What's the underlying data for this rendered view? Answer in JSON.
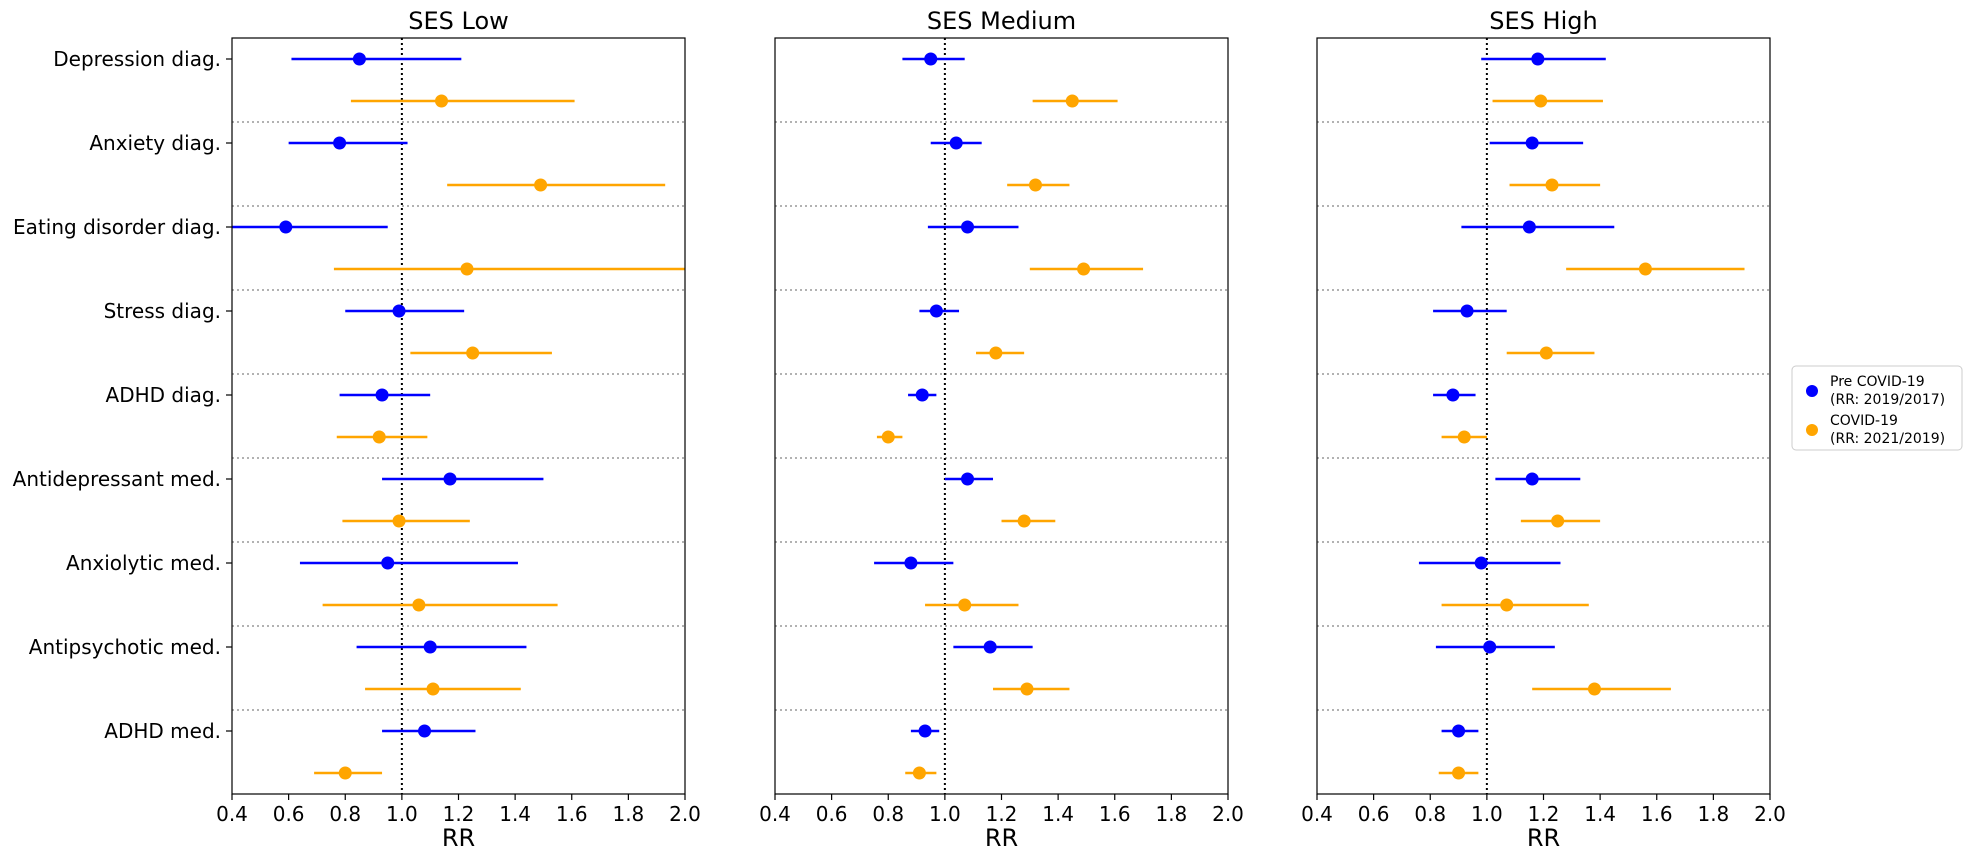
{
  "legend": {
    "entries": [
      {
        "line1": "Pre COVID-19",
        "line2": "(RR: 2019/2017)",
        "color": "#0000ff"
      },
      {
        "line1": "COVID-19",
        "line2": "(RR: 2021/2019)",
        "color": "#ffa500"
      }
    ]
  },
  "chart_data": {
    "type": "forest",
    "categories": [
      "Depression diag.",
      "Anxiety diag.",
      "Eating disorder diag.",
      "Stress diag.",
      "ADHD diag.",
      "Antidepressant med.",
      "Anxiolytic med.",
      "Antipsychotic med.",
      "ADHD med."
    ],
    "xlabel": "RR",
    "xlim": [
      0.4,
      2.0
    ],
    "xticks": [
      "0.4",
      "0.6",
      "0.8",
      "1.0",
      "1.2",
      "1.4",
      "1.6",
      "1.8",
      "2.0"
    ],
    "reference_line": 1.0,
    "series_colors": {
      "pre": "#0000ff",
      "covid": "#ffa500"
    },
    "panels": [
      {
        "title": "SES Low",
        "pre": [
          {
            "rr": 0.85,
            "lo": 0.61,
            "hi": 1.21
          },
          {
            "rr": 0.78,
            "lo": 0.6,
            "hi": 1.02
          },
          {
            "rr": 0.59,
            "lo": 0.4,
            "hi": 0.95
          },
          {
            "rr": 0.99,
            "lo": 0.8,
            "hi": 1.22
          },
          {
            "rr": 0.93,
            "lo": 0.78,
            "hi": 1.1
          },
          {
            "rr": 1.17,
            "lo": 0.93,
            "hi": 1.5
          },
          {
            "rr": 0.95,
            "lo": 0.64,
            "hi": 1.41
          },
          {
            "rr": 1.1,
            "lo": 0.84,
            "hi": 1.44
          },
          {
            "rr": 1.08,
            "lo": 0.93,
            "hi": 1.26
          }
        ],
        "covid": [
          {
            "rr": 1.14,
            "lo": 0.82,
            "hi": 1.61
          },
          {
            "rr": 1.49,
            "lo": 1.16,
            "hi": 1.93
          },
          {
            "rr": 1.23,
            "lo": 0.76,
            "hi": 2.0
          },
          {
            "rr": 1.25,
            "lo": 1.03,
            "hi": 1.53
          },
          {
            "rr": 0.92,
            "lo": 0.77,
            "hi": 1.09
          },
          {
            "rr": 0.99,
            "lo": 0.79,
            "hi": 1.24
          },
          {
            "rr": 1.06,
            "lo": 0.72,
            "hi": 1.55
          },
          {
            "rr": 1.11,
            "lo": 0.87,
            "hi": 1.42
          },
          {
            "rr": 0.8,
            "lo": 0.69,
            "hi": 0.93
          }
        ]
      },
      {
        "title": "SES Medium",
        "pre": [
          {
            "rr": 0.95,
            "lo": 0.85,
            "hi": 1.07
          },
          {
            "rr": 1.04,
            "lo": 0.95,
            "hi": 1.13
          },
          {
            "rr": 1.08,
            "lo": 0.94,
            "hi": 1.26
          },
          {
            "rr": 0.97,
            "lo": 0.91,
            "hi": 1.05
          },
          {
            "rr": 0.92,
            "lo": 0.87,
            "hi": 0.97
          },
          {
            "rr": 1.08,
            "lo": 1.0,
            "hi": 1.17
          },
          {
            "rr": 0.88,
            "lo": 0.75,
            "hi": 1.03
          },
          {
            "rr": 1.16,
            "lo": 1.03,
            "hi": 1.31
          },
          {
            "rr": 0.93,
            "lo": 0.88,
            "hi": 0.98
          }
        ],
        "covid": [
          {
            "rr": 1.45,
            "lo": 1.31,
            "hi": 1.61
          },
          {
            "rr": 1.32,
            "lo": 1.22,
            "hi": 1.44
          },
          {
            "rr": 1.49,
            "lo": 1.3,
            "hi": 1.7
          },
          {
            "rr": 1.18,
            "lo": 1.11,
            "hi": 1.28
          },
          {
            "rr": 0.8,
            "lo": 0.76,
            "hi": 0.85
          },
          {
            "rr": 1.28,
            "lo": 1.2,
            "hi": 1.39
          },
          {
            "rr": 1.07,
            "lo": 0.93,
            "hi": 1.26
          },
          {
            "rr": 1.29,
            "lo": 1.17,
            "hi": 1.44
          },
          {
            "rr": 0.91,
            "lo": 0.86,
            "hi": 0.97
          }
        ]
      },
      {
        "title": "SES High",
        "pre": [
          {
            "rr": 1.18,
            "lo": 0.98,
            "hi": 1.42
          },
          {
            "rr": 1.16,
            "lo": 1.01,
            "hi": 1.34
          },
          {
            "rr": 1.15,
            "lo": 0.91,
            "hi": 1.45
          },
          {
            "rr": 0.93,
            "lo": 0.81,
            "hi": 1.07
          },
          {
            "rr": 0.88,
            "lo": 0.81,
            "hi": 0.96
          },
          {
            "rr": 1.16,
            "lo": 1.03,
            "hi": 1.33
          },
          {
            "rr": 0.98,
            "lo": 0.76,
            "hi": 1.26
          },
          {
            "rr": 1.01,
            "lo": 0.82,
            "hi": 1.24
          },
          {
            "rr": 0.9,
            "lo": 0.84,
            "hi": 0.97
          }
        ],
        "covid": [
          {
            "rr": 1.19,
            "lo": 1.02,
            "hi": 1.41
          },
          {
            "rr": 1.23,
            "lo": 1.08,
            "hi": 1.4
          },
          {
            "rr": 1.56,
            "lo": 1.28,
            "hi": 1.91
          },
          {
            "rr": 1.21,
            "lo": 1.07,
            "hi": 1.38
          },
          {
            "rr": 0.92,
            "lo": 0.84,
            "hi": 1.0
          },
          {
            "rr": 1.25,
            "lo": 1.12,
            "hi": 1.4
          },
          {
            "rr": 1.07,
            "lo": 0.84,
            "hi": 1.36
          },
          {
            "rr": 1.38,
            "lo": 1.16,
            "hi": 1.65
          },
          {
            "rr": 0.9,
            "lo": 0.83,
            "hi": 0.97
          }
        ]
      }
    ]
  }
}
